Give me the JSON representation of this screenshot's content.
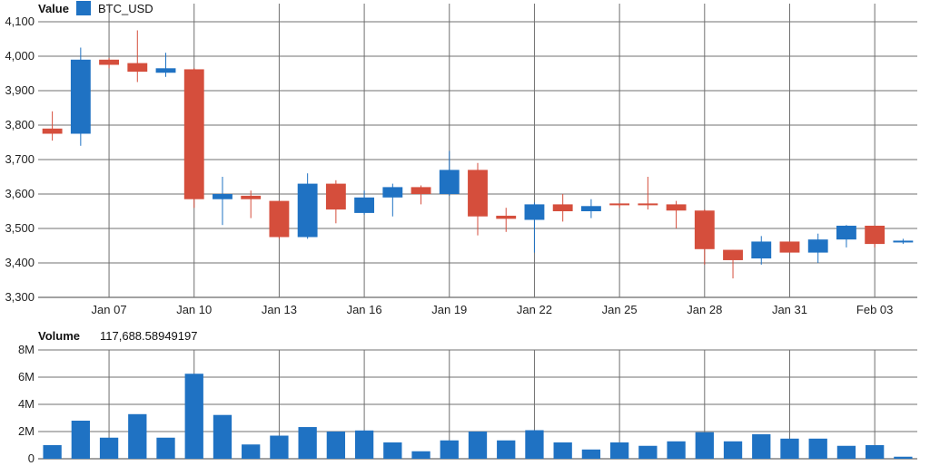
{
  "legend": {
    "title": "Value",
    "series_name": "BTC_USD",
    "up_color": "#1f72c3",
    "down_color": "#d54e3c"
  },
  "volume_header": {
    "title": "Volume",
    "value": "117,688.58949197"
  },
  "chart_data": [
    {
      "type": "candlestick",
      "title": "Value",
      "series": [
        {
          "name": "BTC_USD"
        }
      ],
      "ylim": [
        3300,
        4100
      ],
      "yticks": [
        "3,300",
        "3,400",
        "3,500",
        "3,600",
        "3,700",
        "3,800",
        "3,900",
        "4,000",
        "4,100"
      ],
      "xticks": [
        "Jan 07",
        "Jan 10",
        "Jan 13",
        "Jan 16",
        "Jan 19",
        "Jan 22",
        "Jan 25",
        "Jan 28",
        "Jan 31",
        "Feb 03"
      ],
      "grid": true,
      "candles": [
        {
          "date": "Jan 05",
          "open": 3790,
          "close": 3775,
          "high": 3840,
          "low": 3755
        },
        {
          "date": "Jan 06",
          "open": 3775,
          "close": 3990,
          "high": 4025,
          "low": 3740
        },
        {
          "date": "Jan 07",
          "open": 3990,
          "close": 3975,
          "high": 3995,
          "low": 3965
        },
        {
          "date": "Jan 08",
          "open": 3980,
          "close": 3955,
          "high": 4075,
          "low": 3925
        },
        {
          "date": "Jan 09",
          "open": 3952,
          "close": 3965,
          "high": 4010,
          "low": 3940
        },
        {
          "date": "Jan 10",
          "open": 3962,
          "close": 3585,
          "high": 3965,
          "low": 3560
        },
        {
          "date": "Jan 11",
          "open": 3585,
          "close": 3600,
          "high": 3650,
          "low": 3510
        },
        {
          "date": "Jan 12",
          "open": 3595,
          "close": 3585,
          "high": 3610,
          "low": 3530
        },
        {
          "date": "Jan 13",
          "open": 3580,
          "close": 3475,
          "high": 3580,
          "low": 3470
        },
        {
          "date": "Jan 14",
          "open": 3475,
          "close": 3630,
          "high": 3660,
          "low": 3470
        },
        {
          "date": "Jan 15",
          "open": 3630,
          "close": 3555,
          "high": 3640,
          "low": 3515
        },
        {
          "date": "Jan 16",
          "open": 3545,
          "close": 3590,
          "high": 3610,
          "low": 3540
        },
        {
          "date": "Jan 17",
          "open": 3590,
          "close": 3620,
          "high": 3630,
          "low": 3535
        },
        {
          "date": "Jan 18",
          "open": 3620,
          "close": 3600,
          "high": 3625,
          "low": 3570
        },
        {
          "date": "Jan 19",
          "open": 3600,
          "close": 3670,
          "high": 3725,
          "low": 3595
        },
        {
          "date": "Jan 20",
          "open": 3670,
          "close": 3535,
          "high": 3690,
          "low": 3480
        },
        {
          "date": "Jan 21",
          "open": 3537,
          "close": 3528,
          "high": 3560,
          "low": 3490
        },
        {
          "date": "Jan 22",
          "open": 3525,
          "close": 3570,
          "high": 3575,
          "low": 3430
        },
        {
          "date": "Jan 23",
          "open": 3570,
          "close": 3550,
          "high": 3600,
          "low": 3520
        },
        {
          "date": "Jan 24",
          "open": 3550,
          "close": 3565,
          "high": 3585,
          "low": 3530
        },
        {
          "date": "Jan 25",
          "open": 3570,
          "close": 3565,
          "high": 3570,
          "low": 3560
        },
        {
          "date": "Jan 26",
          "open": 3570,
          "close": 3568,
          "high": 3650,
          "low": 3555
        },
        {
          "date": "Jan 27",
          "open": 3570,
          "close": 3552,
          "high": 3580,
          "low": 3500
        },
        {
          "date": "Jan 28",
          "open": 3552,
          "close": 3440,
          "high": 3555,
          "low": 3395
        },
        {
          "date": "Jan 29",
          "open": 3438,
          "close": 3408,
          "high": 3438,
          "low": 3355
        },
        {
          "date": "Jan 30",
          "open": 3413,
          "close": 3462,
          "high": 3478,
          "low": 3395
        },
        {
          "date": "Jan 31",
          "open": 3462,
          "close": 3430,
          "high": 3462,
          "low": 3430
        },
        {
          "date": "Feb 01",
          "open": 3430,
          "close": 3468,
          "high": 3485,
          "low": 3400
        },
        {
          "date": "Feb 02",
          "open": 3468,
          "close": 3508,
          "high": 3510,
          "low": 3445
        },
        {
          "date": "Feb 03",
          "open": 3508,
          "close": 3455,
          "high": 3508,
          "low": 3445
        },
        {
          "date": "Feb 04",
          "open": 3460,
          "close": 3462,
          "high": 3470,
          "low": 3455
        }
      ]
    },
    {
      "type": "bar",
      "title": "Volume",
      "ylim": [
        0,
        8000000
      ],
      "yticks": [
        "0",
        "2M",
        "4M",
        "6M",
        "8M"
      ],
      "grid": true,
      "categories": [
        "Jan 05",
        "Jan 06",
        "Jan 07",
        "Jan 08",
        "Jan 09",
        "Jan 10",
        "Jan 11",
        "Jan 12",
        "Jan 13",
        "Jan 14",
        "Jan 15",
        "Jan 16",
        "Jan 17",
        "Jan 18",
        "Jan 19",
        "Jan 20",
        "Jan 21",
        "Jan 22",
        "Jan 23",
        "Jan 24",
        "Jan 25",
        "Jan 26",
        "Jan 27",
        "Jan 28",
        "Jan 29",
        "Jan 30",
        "Jan 31",
        "Feb 01",
        "Feb 02",
        "Feb 03",
        "Feb 04"
      ],
      "values": [
        1000000,
        2800000,
        1550000,
        3280000,
        1550000,
        6250000,
        3220000,
        1050000,
        1700000,
        2330000,
        2000000,
        2080000,
        1200000,
        550000,
        1350000,
        2000000,
        1350000,
        2100000,
        1200000,
        680000,
        1200000,
        950000,
        1280000,
        1950000,
        1280000,
        1800000,
        1480000,
        1480000,
        950000,
        1000000,
        150000
      ]
    }
  ]
}
